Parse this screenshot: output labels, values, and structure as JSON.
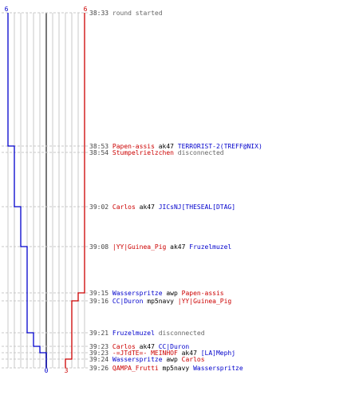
{
  "colors": {
    "ct": "#0000cc",
    "t": "#cc0000",
    "grid": "#c8c8c8",
    "grid_dark": "#777777",
    "time": "#444444",
    "info": "#666666",
    "weapon": "#000000"
  },
  "top_counts": {
    "ct": "6",
    "t": "6"
  },
  "bottom_counts": {
    "ct": "0",
    "t": "3"
  },
  "events": [
    {
      "time": "38:33",
      "parts": [
        {
          "text": "round started",
          "team": "info"
        }
      ]
    },
    {
      "time": "38:53",
      "parts": [
        {
          "text": "Papen-assis",
          "team": "t"
        },
        {
          "text": " ak47 ",
          "team": "weapon"
        },
        {
          "text": "TERRORIST-2(TREFF@NIX)",
          "team": "ct"
        }
      ]
    },
    {
      "time": "38:54",
      "parts": [
        {
          "text": "Stumpelrielzchen",
          "team": "t"
        },
        {
          "text": " disconnected",
          "team": "info"
        }
      ]
    },
    {
      "time": "39:02",
      "parts": [
        {
          "text": "Carlos",
          "team": "t"
        },
        {
          "text": " ak47 ",
          "team": "weapon"
        },
        {
          "text": "JICsNJ[THESEAL[DTAG]",
          "team": "ct"
        }
      ]
    },
    {
      "time": "39:08",
      "parts": [
        {
          "text": "|YY|Guinea_Pig",
          "team": "t"
        },
        {
          "text": " ak47 ",
          "team": "weapon"
        },
        {
          "text": "Fruzelmuzel",
          "team": "ct"
        }
      ]
    },
    {
      "time": "39:15",
      "parts": [
        {
          "text": "Wasserspritze",
          "team": "ct"
        },
        {
          "text": " awp ",
          "team": "weapon"
        },
        {
          "text": "Papen-assis",
          "team": "t"
        }
      ]
    },
    {
      "time": "39:16",
      "parts": [
        {
          "text": "CC|Duron",
          "team": "ct"
        },
        {
          "text": " mp5navy ",
          "team": "weapon"
        },
        {
          "text": "|YY|Guinea_Pig",
          "team": "t"
        }
      ]
    },
    {
      "time": "39:21",
      "parts": [
        {
          "text": "Fruzelmuzel",
          "team": "ct"
        },
        {
          "text": " disconnected",
          "team": "info"
        }
      ]
    },
    {
      "time": "39:23",
      "parts": [
        {
          "text": "Carlos",
          "team": "t"
        },
        {
          "text": " ak47 ",
          "team": "weapon"
        },
        {
          "text": "CC|Duron",
          "team": "ct"
        }
      ]
    },
    {
      "time": "39:23",
      "parts": [
        {
          "text": "-=JTdTE=- MEINHOF",
          "team": "t"
        },
        {
          "text": " ak47 ",
          "team": "weapon"
        },
        {
          "text": "[LA]Mephj",
          "team": "ct"
        }
      ]
    },
    {
      "time": "39:24",
      "parts": [
        {
          "text": "Wasserspritze",
          "team": "ct"
        },
        {
          "text": " awp ",
          "team": "weapon"
        },
        {
          "text": "Carlos",
          "team": "t"
        }
      ]
    },
    {
      "time": "39:26",
      "parts": [
        {
          "text": "QAMPA_Frutti",
          "team": "t"
        },
        {
          "text": " mp5navy ",
          "team": "weapon"
        },
        {
          "text": "Wasserspritze",
          "team": "ct"
        }
      ]
    }
  ],
  "ct_alive_after_event": [
    6,
    5,
    5,
    4,
    3,
    3,
    3,
    2,
    1,
    0,
    0,
    0
  ],
  "t_alive_after_event": [
    6,
    6,
    6,
    6,
    6,
    5,
    4,
    4,
    4,
    4,
    3,
    3
  ]
}
